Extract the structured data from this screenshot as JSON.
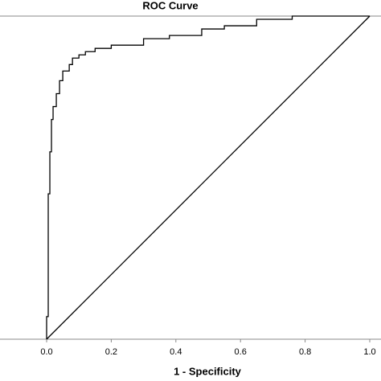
{
  "chart_data": {
    "type": "line",
    "title": "ROC Curve",
    "x_label": "1 - Specificity",
    "xlim": [
      0,
      1
    ],
    "ylim": [
      0,
      1
    ],
    "xticks": [
      {
        "value": 0,
        "label": "0.0"
      },
      0.2,
      0.4,
      0.6,
      0.8,
      {
        "value": 1,
        "label": "1.0"
      }
    ],
    "series": [
      {
        "color": "#000000",
        "step": true,
        "x": [
          0,
          0,
          0.005,
          0.005,
          0.01,
          0.01,
          0.015,
          0.015,
          0.02,
          0.02,
          0.03,
          0.03,
          0.04,
          0.04,
          0.05,
          0.05,
          0.07,
          0.07,
          0.08,
          0.08,
          0.1,
          0.1,
          0.12,
          0.12,
          0.15,
          0.15,
          0.2,
          0.2,
          0.3,
          0.3,
          0.38,
          0.38,
          0.48,
          0.48,
          0.55,
          0.55,
          0.65,
          0.65,
          0.76,
          0.76,
          1
        ],
        "values": [
          0,
          0.07,
          0.07,
          0.45,
          0.45,
          0.58,
          0.58,
          0.68,
          0.68,
          0.72,
          0.72,
          0.76,
          0.76,
          0.8,
          0.8,
          0.83,
          0.83,
          0.85,
          0.85,
          0.87,
          0.87,
          0.88,
          0.88,
          0.89,
          0.89,
          0.9,
          0.9,
          0.91,
          0.91,
          0.93,
          0.93,
          0.94,
          0.94,
          0.96,
          0.96,
          0.97,
          0.97,
          0.99,
          0.99,
          1,
          1
        ]
      },
      {
        "color": "#000000",
        "x": [
          0,
          1
        ],
        "values": [
          0,
          1
        ]
      }
    ]
  }
}
